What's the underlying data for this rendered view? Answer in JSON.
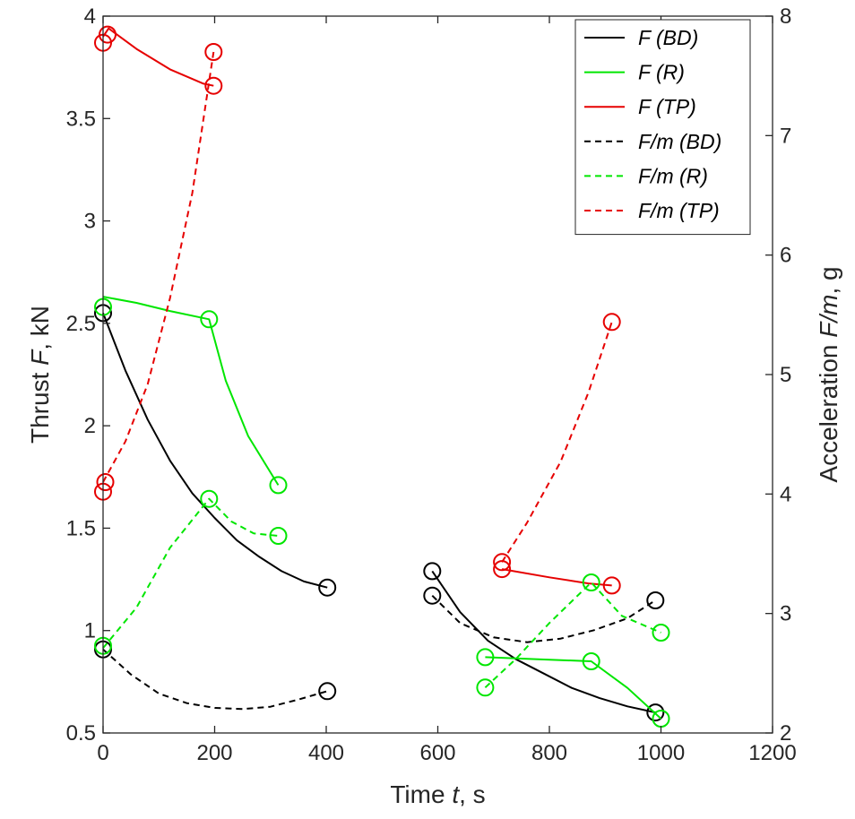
{
  "chart_data": {
    "type": "line",
    "title": "",
    "xlabel": {
      "prefix": "Time",
      "var": "t",
      "unit": ", s"
    },
    "ylabel_left": {
      "prefix": "Thrust",
      "var": "F",
      "unit": ", kN"
    },
    "ylabel_right": {
      "prefix": "Acceleration",
      "var": "F/m",
      "unit": ", g"
    },
    "xlim": [
      0,
      1200
    ],
    "ylim_left": [
      0.5,
      4
    ],
    "ylim_right": [
      2,
      8
    ],
    "xticks": [
      0,
      200,
      400,
      600,
      800,
      1000,
      1200
    ],
    "yticks_left": [
      0.5,
      1,
      1.5,
      2,
      2.5,
      3,
      3.5,
      4
    ],
    "yticks_right": [
      2,
      3,
      4,
      5,
      6,
      7,
      8
    ],
    "legend_position": "top-right",
    "series": [
      {
        "name": "F (BD)",
        "axis": "left",
        "color": "#000000",
        "dash": false,
        "segments": [
          {
            "x": [
              0,
              40,
              80,
              120,
              160,
              200,
              240,
              280,
              320,
              360,
              402
            ],
            "y": [
              2.55,
              2.27,
              2.03,
              1.83,
              1.67,
              1.55,
              1.44,
              1.36,
              1.29,
              1.24,
              1.21
            ],
            "markers": [
              [
                0,
                2.55
              ],
              [
                402,
                1.21
              ]
            ]
          },
          {
            "x": [
              590,
              640,
              690,
              740,
              790,
              840,
              890,
              940,
              990
            ],
            "y": [
              1.29,
              1.09,
              0.95,
              0.86,
              0.79,
              0.72,
              0.67,
              0.63,
              0.6
            ],
            "markers": [
              [
                590,
                1.29
              ],
              [
                990,
                0.6
              ]
            ]
          }
        ]
      },
      {
        "name": "F (R)",
        "axis": "left",
        "color": "#00e600",
        "dash": false,
        "segments": [
          {
            "x": [
              0,
              60,
              120,
              190,
              220,
              260,
              314
            ],
            "y": [
              2.63,
              2.6,
              2.56,
              2.52,
              2.22,
              1.95,
              1.71
            ],
            "markers": [
              [
                0,
                2.58
              ],
              [
                190,
                2.52
              ],
              [
                314,
                1.71
              ]
            ]
          },
          {
            "x": [
              685,
              780,
              875,
              940,
              1000
            ],
            "y": [
              0.87,
              0.86,
              0.85,
              0.72,
              0.57
            ],
            "markers": [
              [
                685,
                0.87
              ],
              [
                875,
                0.85
              ],
              [
                1000,
                0.57
              ]
            ]
          }
        ]
      },
      {
        "name": "F (TP)",
        "axis": "left",
        "color": "#e60000",
        "dash": false,
        "segments": [
          {
            "x": [
              0,
              10,
              60,
              120,
              180,
              198
            ],
            "y": [
              3.9,
              3.94,
              3.84,
              3.74,
              3.67,
              3.66
            ],
            "markers": [
              [
                0,
                3.87
              ],
              [
                8,
                3.91
              ],
              [
                198,
                3.66
              ]
            ]
          },
          {
            "x": [
              715,
              800,
              870,
              912
            ],
            "y": [
              1.3,
              1.26,
              1.23,
              1.22
            ],
            "markers": [
              [
                715,
                1.3
              ],
              [
                912,
                1.22
              ]
            ]
          }
        ]
      },
      {
        "name": "F/m (BD)",
        "axis": "right",
        "color": "#000000",
        "dash": true,
        "segments": [
          {
            "x": [
              0,
              50,
              100,
              150,
              200,
              250,
              300,
              350,
              402
            ],
            "y": [
              2.7,
              2.49,
              2.33,
              2.25,
              2.21,
              2.2,
              2.22,
              2.28,
              2.35
            ],
            "markers": [
              [
                0,
                2.7
              ],
              [
                402,
                2.35
              ]
            ]
          },
          {
            "x": [
              590,
              640,
              700,
              760,
              820,
              880,
              940,
              990
            ],
            "y": [
              3.15,
              2.92,
              2.8,
              2.76,
              2.79,
              2.86,
              2.96,
              3.11
            ],
            "markers": [
              [
                590,
                3.15
              ],
              [
                990,
                3.11
              ]
            ]
          }
        ]
      },
      {
        "name": "F/m (R)",
        "axis": "right",
        "color": "#00e600",
        "dash": true,
        "segments": [
          {
            "x": [
              0,
              60,
              120,
              190,
              230,
              270,
              314
            ],
            "y": [
              2.71,
              3.05,
              3.55,
              3.96,
              3.77,
              3.67,
              3.65
            ],
            "markers": [
              [
                0,
                2.73
              ],
              [
                190,
                3.96
              ],
              [
                314,
                3.65
              ]
            ]
          },
          {
            "x": [
              685,
              740,
              800,
              875,
              930,
              1000
            ],
            "y": [
              2.38,
              2.62,
              2.92,
              3.26,
              2.98,
              2.84
            ],
            "markers": [
              [
                685,
                2.38
              ],
              [
                875,
                3.26
              ],
              [
                1000,
                2.84
              ]
            ]
          }
        ]
      },
      {
        "name": "F/m (TP)",
        "axis": "right",
        "color": "#e60000",
        "dash": true,
        "segments": [
          {
            "x": [
              0,
              40,
              80,
              120,
              160,
              198
            ],
            "y": [
              4.1,
              4.44,
              4.92,
              5.64,
              6.52,
              7.7
            ],
            "markers": [
              [
                0,
                4.02
              ],
              [
                4,
                4.1
              ],
              [
                198,
                7.7
              ]
            ]
          },
          {
            "x": [
              715,
              760,
              820,
              870,
              912
            ],
            "y": [
              3.43,
              3.76,
              4.27,
              4.85,
              5.44
            ],
            "markers": [
              [
                715,
                3.43
              ],
              [
                912,
                5.44
              ]
            ]
          }
        ]
      }
    ]
  }
}
